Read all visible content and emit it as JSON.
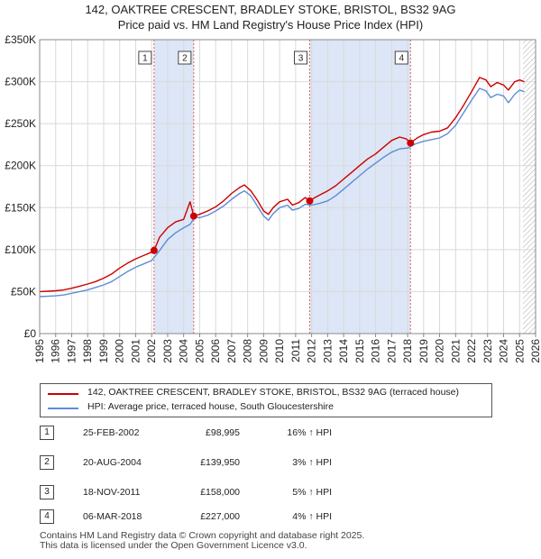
{
  "title_line1": "142, OAKTREE CRESCENT, BRADLEY STOKE, BRISTOL, BS32 9AG",
  "title_line2": "Price paid vs. HM Land Registry's House Price Index (HPI)",
  "chart_data": {
    "type": "line",
    "xlim": [
      1995,
      2026
    ],
    "ylim": [
      0,
      350000
    ],
    "ytick_values": [
      0,
      50000,
      100000,
      150000,
      200000,
      250000,
      300000,
      350000
    ],
    "ytick_labels": [
      "£0",
      "£50K",
      "£100K",
      "£150K",
      "£200K",
      "£250K",
      "£300K",
      "£350K"
    ],
    "xtick_labels": [
      "1995",
      "1996",
      "1997",
      "1998",
      "1999",
      "2000",
      "2001",
      "2002",
      "2003",
      "2004",
      "2005",
      "2006",
      "2007",
      "2008",
      "2009",
      "2010",
      "2011",
      "2012",
      "2013",
      "2014",
      "2015",
      "2016",
      "2017",
      "2018",
      "2019",
      "2020",
      "2021",
      "2022",
      "2023",
      "2024",
      "2025",
      "2026"
    ],
    "grid": true,
    "hatch_from": 2025.2,
    "series": [
      {
        "name": "142, OAKTREE CRESCENT, BRADLEY STOKE, BRISTOL, BS32 9AG (terraced house)",
        "color": "#cc0000",
        "x": [
          1995.0,
          1995.5,
          1996.0,
          1996.5,
          1997.0,
          1997.5,
          1998.0,
          1998.5,
          1999.0,
          1999.5,
          2000.0,
          2000.5,
          2001.0,
          2001.5,
          2002.0,
          2002.15,
          2002.5,
          2003.0,
          2003.5,
          2004.0,
          2004.4,
          2004.63,
          2005.0,
          2005.5,
          2006.0,
          2006.5,
          2007.0,
          2007.5,
          2007.8,
          2008.2,
          2008.6,
          2009.0,
          2009.3,
          2009.6,
          2010.0,
          2010.5,
          2010.8,
          2011.2,
          2011.6,
          2011.88,
          2012.2,
          2012.6,
          2013.0,
          2013.5,
          2014.0,
          2014.5,
          2015.0,
          2015.5,
          2016.0,
          2016.5,
          2017.0,
          2017.5,
          2017.9,
          2018.18,
          2018.6,
          2019.0,
          2019.5,
          2020.0,
          2020.5,
          2021.0,
          2021.5,
          2022.0,
          2022.5,
          2022.9,
          2023.2,
          2023.6,
          2024.0,
          2024.3,
          2024.7,
          2025.0,
          2025.3
        ],
        "values": [
          50000,
          50500,
          51000,
          52000,
          54000,
          56500,
          59000,
          62000,
          66000,
          71000,
          78000,
          84000,
          89000,
          93000,
          97000,
          98995,
          115000,
          126000,
          133000,
          136000,
          157000,
          139950,
          142000,
          146000,
          151000,
          158000,
          167000,
          174000,
          177000,
          170000,
          159000,
          146000,
          142000,
          150000,
          157000,
          160000,
          153000,
          156000,
          162000,
          158000,
          162000,
          166000,
          170000,
          176000,
          184000,
          192000,
          200000,
          208000,
          214000,
          222000,
          230000,
          234000,
          232000,
          227000,
          233000,
          237000,
          240000,
          241000,
          245000,
          257000,
          272000,
          288000,
          305000,
          302000,
          294000,
          299000,
          296000,
          290000,
          300000,
          302000,
          300000
        ]
      },
      {
        "name": "HPI: Average price, terraced house, South Gloucestershire",
        "color": "#5b8ed6",
        "x": [
          1995.0,
          1995.5,
          1996.0,
          1996.5,
          1997.0,
          1997.5,
          1998.0,
          1998.5,
          1999.0,
          1999.5,
          2000.0,
          2000.5,
          2001.0,
          2001.5,
          2002.0,
          2002.5,
          2003.0,
          2003.5,
          2004.0,
          2004.4,
          2004.7,
          2005.0,
          2005.5,
          2006.0,
          2006.5,
          2007.0,
          2007.5,
          2007.8,
          2008.2,
          2008.6,
          2009.0,
          2009.3,
          2009.6,
          2010.0,
          2010.5,
          2010.8,
          2011.2,
          2011.6,
          2012.0,
          2012.5,
          2013.0,
          2013.5,
          2014.0,
          2014.5,
          2015.0,
          2015.5,
          2016.0,
          2016.5,
          2017.0,
          2017.5,
          2018.0,
          2018.5,
          2019.0,
          2019.5,
          2020.0,
          2020.5,
          2021.0,
          2021.5,
          2022.0,
          2022.5,
          2022.9,
          2023.2,
          2023.6,
          2024.0,
          2024.3,
          2024.7,
          2025.0,
          2025.3
        ],
        "values": [
          44000,
          44500,
          45000,
          46000,
          48000,
          50000,
          52000,
          55000,
          58000,
          62000,
          68000,
          74000,
          79000,
          83000,
          87000,
          99000,
          112000,
          120000,
          126000,
          130000,
          139000,
          138000,
          141000,
          146000,
          152000,
          160000,
          167000,
          170000,
          164000,
          152000,
          140000,
          135000,
          143000,
          150000,
          153000,
          147000,
          149000,
          154000,
          153000,
          155000,
          158000,
          164000,
          172000,
          180000,
          188000,
          196000,
          203000,
          210000,
          216000,
          220000,
          221000,
          226000,
          229000,
          231000,
          233000,
          238000,
          248000,
          263000,
          278000,
          292000,
          289000,
          281000,
          285000,
          283000,
          275000,
          285000,
          290000,
          288000
        ]
      }
    ],
    "sales": [
      {
        "marker": "1",
        "date": "25-FEB-2002",
        "x": 2002.15,
        "price_value": 98995,
        "price": "£98,995",
        "hpi": "16% ↑ HPI"
      },
      {
        "marker": "2",
        "date": "20-AUG-2004",
        "x": 2004.63,
        "price_value": 139950,
        "price": "£139,950",
        "hpi": "3% ↑ HPI"
      },
      {
        "marker": "3",
        "date": "18-NOV-2011",
        "x": 2011.88,
        "price_value": 158000,
        "price": "£158,000",
        "hpi": "5% ↑ HPI"
      },
      {
        "marker": "4",
        "date": "06-MAR-2018",
        "x": 2018.18,
        "price_value": 227000,
        "price": "£227,000",
        "hpi": "4% ↑ HPI"
      }
    ],
    "shaded_periods": [
      [
        2002.15,
        2004.63
      ],
      [
        2011.88,
        2018.18
      ]
    ]
  },
  "legend": {
    "property_label": "142, OAKTREE CRESCENT, BRADLEY STOKE, BRISTOL, BS32 9AG (terraced house)",
    "hpi_label": "HPI: Average price, terraced house, South Gloucestershire"
  },
  "footer": {
    "line1": "Contains HM Land Registry data © Crown copyright and database right 2025.",
    "line2": "This data is licensed under the Open Government Licence v3.0."
  },
  "colors": {
    "property": "#cc0000",
    "hpi": "#5b8ed6",
    "shade": "#dde6f6",
    "vline": "#e06060"
  }
}
